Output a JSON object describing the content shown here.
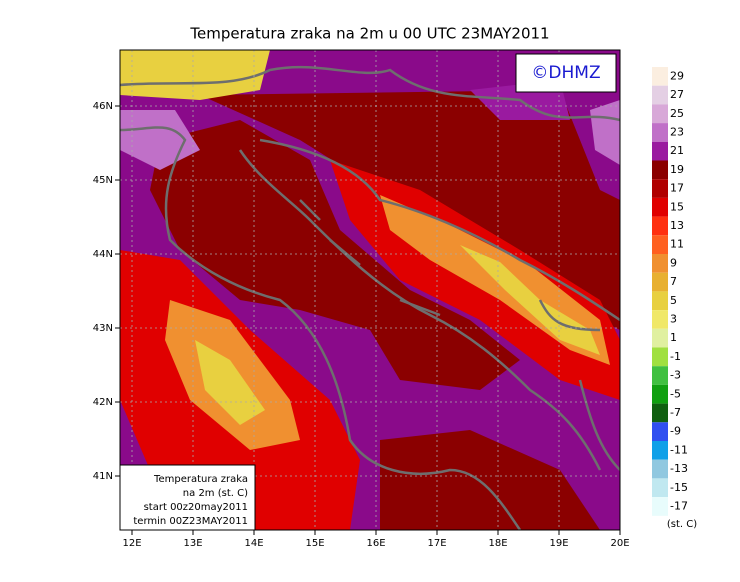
{
  "title": "Temperatura zraka na 2m u 00 UTC 23MAY2011",
  "copyright": "©DHMZ",
  "lon_ticks": [
    "12E",
    "13E",
    "14E",
    "15E",
    "16E",
    "17E",
    "18E",
    "19E",
    "20E"
  ],
  "lat_ticks": [
    "46N",
    "45N",
    "44N",
    "43N",
    "42N",
    "41N"
  ],
  "colorbar": {
    "labels": [
      29,
      27,
      25,
      23,
      21,
      19,
      17,
      15,
      13,
      11,
      9,
      7,
      5,
      3,
      1,
      -1,
      -3,
      -5,
      -7,
      -9,
      -11,
      -13,
      -15,
      -17
    ],
    "colors": [
      "#fbeee0",
      "#e4cfe4",
      "#d8a8d8",
      "#c070c8",
      "#9a1aa0",
      "#8b0000",
      "#b00000",
      "#e00000",
      "#ff3010",
      "#ff6020",
      "#f09030",
      "#e8b030",
      "#e8d040",
      "#f0e868",
      "#e0f0a0",
      "#a0e040",
      "#40c040",
      "#10a010",
      "#106010",
      "#3050f0",
      "#10a0e8",
      "#90c8e0",
      "#c0e8f0",
      "#e8fcfc"
    ],
    "unit": "(st. C)"
  },
  "info_box": [
    "Temperatura zraka",
    "na 2m (st. C)",
    "start 00z20may2011",
    "termin 00Z23MAY2011"
  ]
}
